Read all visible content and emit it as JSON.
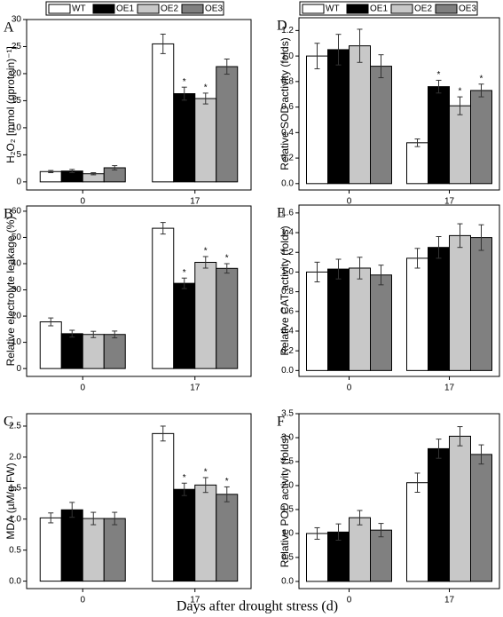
{
  "xlabel": "Days after drought stress (d)",
  "chart_data": [
    {
      "type": "bar",
      "letter": "A",
      "ylabel": "H₂O₂ [mmol (gprotein)⁻¹]",
      "categories": [
        "0",
        "17"
      ],
      "series": [
        {
          "name": "WT",
          "color": "#ffffff",
          "values": [
            1.9,
            25.5
          ],
          "errors": [
            0.2,
            1.8
          ],
          "marks": [
            null,
            null
          ]
        },
        {
          "name": "OE1",
          "color": "#000000",
          "values": [
            2.0,
            16.3
          ],
          "errors": [
            0.3,
            1.2
          ],
          "marks": [
            null,
            "*"
          ]
        },
        {
          "name": "OE2",
          "color": "#c8c8c8",
          "values": [
            1.5,
            15.4
          ],
          "errors": [
            0.2,
            1.0
          ],
          "marks": [
            null,
            "*"
          ]
        },
        {
          "name": "OE3",
          "color": "#808080",
          "values": [
            2.6,
            21.3
          ],
          "errors": [
            0.4,
            1.4
          ],
          "marks": [
            null,
            null
          ]
        }
      ],
      "ylim": [
        -1.5,
        30
      ],
      "yticks": [
        0,
        5,
        10,
        15,
        20,
        25,
        30
      ]
    },
    {
      "type": "bar",
      "letter": "B",
      "ylabel": "Relative electrolyte leakage (%)",
      "categories": [
        "0",
        "17"
      ],
      "series": [
        {
          "name": "WT",
          "color": "#ffffff",
          "values": [
            17.8,
            53.5
          ],
          "errors": [
            1.5,
            2.2
          ],
          "marks": [
            null,
            null
          ]
        },
        {
          "name": "OE1",
          "color": "#000000",
          "values": [
            13.3,
            32.5
          ],
          "errors": [
            1.3,
            2.0
          ],
          "marks": [
            null,
            "*"
          ]
        },
        {
          "name": "OE2",
          "color": "#c8c8c8",
          "values": [
            13.0,
            40.5
          ],
          "errors": [
            1.2,
            2.2
          ],
          "marks": [
            null,
            "*"
          ]
        },
        {
          "name": "OE3",
          "color": "#808080",
          "values": [
            13.0,
            38.2
          ],
          "errors": [
            1.3,
            1.8
          ],
          "marks": [
            null,
            "*"
          ]
        }
      ],
      "ylim": [
        -3,
        62
      ],
      "yticks": [
        0,
        10,
        20,
        30,
        40,
        50,
        60
      ]
    },
    {
      "type": "bar",
      "letter": "C",
      "ylabel": "MDA (µM/g FW)",
      "categories": [
        "0",
        "17"
      ],
      "series": [
        {
          "name": "WT",
          "color": "#ffffff",
          "values": [
            1.02,
            2.38
          ],
          "errors": [
            0.08,
            0.12
          ],
          "marks": [
            null,
            null
          ]
        },
        {
          "name": "OE1",
          "color": "#000000",
          "values": [
            1.15,
            1.48
          ],
          "errors": [
            0.12,
            0.1
          ],
          "marks": [
            null,
            "*"
          ]
        },
        {
          "name": "OE2",
          "color": "#c8c8c8",
          "values": [
            1.01,
            1.55
          ],
          "errors": [
            0.1,
            0.12
          ],
          "marks": [
            null,
            "*"
          ]
        },
        {
          "name": "OE3",
          "color": "#808080",
          "values": [
            1.01,
            1.4
          ],
          "errors": [
            0.1,
            0.12
          ],
          "marks": [
            null,
            "*"
          ]
        }
      ],
      "ylim": [
        -0.12,
        2.7
      ],
      "yticks": [
        {
          "value": 0,
          "label": "0.0"
        },
        0.5,
        {
          "value": 1,
          "label": "1.0"
        },
        1.5,
        {
          "value": 2,
          "label": "2.0"
        },
        2.5
      ]
    },
    {
      "type": "bar",
      "letter": "D",
      "ylabel": "Relative SOD activity (folds)",
      "categories": [
        "0",
        "17"
      ],
      "series": [
        {
          "name": "WT",
          "color": "#ffffff",
          "values": [
            1.0,
            0.32
          ],
          "errors": [
            0.1,
            0.03
          ],
          "marks": [
            null,
            null
          ]
        },
        {
          "name": "OE1",
          "color": "#000000",
          "values": [
            1.05,
            0.76
          ],
          "errors": [
            0.12,
            0.05
          ],
          "marks": [
            null,
            "*"
          ]
        },
        {
          "name": "OE2",
          "color": "#c8c8c8",
          "values": [
            1.08,
            0.61
          ],
          "errors": [
            0.13,
            0.07
          ],
          "marks": [
            null,
            "*"
          ]
        },
        {
          "name": "OE3",
          "color": "#808080",
          "values": [
            0.92,
            0.73
          ],
          "errors": [
            0.09,
            0.05
          ],
          "marks": [
            null,
            "*"
          ]
        }
      ],
      "ylim": [
        -0.05,
        1.3
      ],
      "yticks": [
        {
          "value": 0,
          "label": "0.0"
        },
        0.2,
        0.4,
        0.6,
        0.8,
        {
          "value": 1,
          "label": "1.0"
        },
        1.2
      ]
    },
    {
      "type": "bar",
      "letter": "E",
      "ylabel": "Relative CAT activity (folds)",
      "categories": [
        "0",
        "17"
      ],
      "series": [
        {
          "name": "WT",
          "color": "#ffffff",
          "values": [
            1.0,
            1.14
          ],
          "errors": [
            0.1,
            0.1
          ],
          "marks": [
            null,
            null
          ]
        },
        {
          "name": "OE1",
          "color": "#000000",
          "values": [
            1.03,
            1.25
          ],
          "errors": [
            0.1,
            0.11
          ],
          "marks": [
            null,
            null
          ]
        },
        {
          "name": "OE2",
          "color": "#c8c8c8",
          "values": [
            1.04,
            1.37
          ],
          "errors": [
            0.11,
            0.12
          ],
          "marks": [
            null,
            null
          ]
        },
        {
          "name": "OE3",
          "color": "#808080",
          "values": [
            0.97,
            1.35
          ],
          "errors": [
            0.1,
            0.13
          ],
          "marks": [
            null,
            null
          ]
        }
      ],
      "ylim": [
        -0.06,
        1.68
      ],
      "yticks": [
        {
          "value": 0,
          "label": "0.0"
        },
        0.2,
        0.4,
        0.6,
        0.8,
        {
          "value": 1,
          "label": "1.0"
        },
        1.2,
        1.4,
        1.6
      ]
    },
    {
      "type": "bar",
      "letter": "F",
      "ylabel": "Relative POD activity (folds)",
      "categories": [
        "0",
        "17"
      ],
      "series": [
        {
          "name": "WT",
          "color": "#ffffff",
          "values": [
            1.0,
            2.06
          ],
          "errors": [
            0.12,
            0.2
          ],
          "marks": [
            null,
            null
          ]
        },
        {
          "name": "OE1",
          "color": "#000000",
          "values": [
            1.03,
            2.77
          ],
          "errors": [
            0.17,
            0.2
          ],
          "marks": [
            null,
            null
          ]
        },
        {
          "name": "OE2",
          "color": "#c8c8c8",
          "values": [
            1.33,
            3.03
          ],
          "errors": [
            0.15,
            0.2
          ],
          "marks": [
            null,
            null
          ]
        },
        {
          "name": "OE3",
          "color": "#808080",
          "values": [
            1.07,
            2.65
          ],
          "errors": [
            0.14,
            0.2
          ],
          "marks": [
            null,
            null
          ]
        }
      ],
      "ylim": [
        -0.15,
        3.5
      ],
      "yticks": [
        {
          "value": 0,
          "label": "0.0"
        },
        0.5,
        {
          "value": 1,
          "label": "1.0"
        },
        1.5,
        {
          "value": 2,
          "label": "2.0"
        },
        2.5,
        {
          "value": 3,
          "label": "3.0"
        },
        3.5
      ]
    }
  ]
}
